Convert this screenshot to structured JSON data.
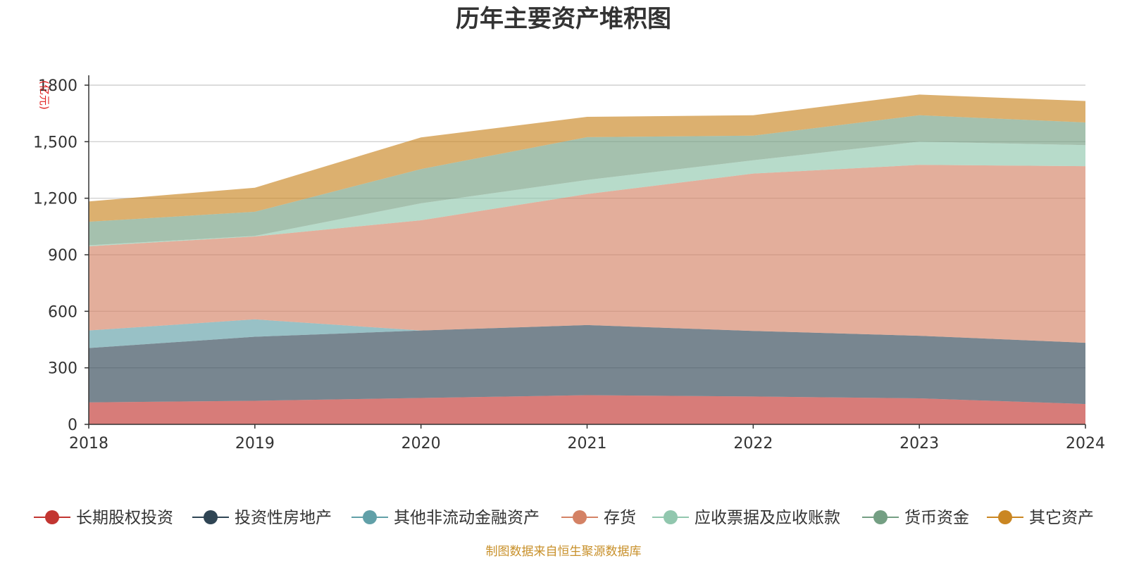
{
  "chart_data": {
    "type": "area",
    "stacked": true,
    "title": "历年主要资产堆积图",
    "ylabel": "(亿元)",
    "xlabel": "",
    "x": [
      "2018",
      "2019",
      "2020",
      "2021",
      "2022",
      "2023",
      "2024"
    ],
    "ylim": [
      0,
      1800
    ],
    "yticks": [
      0,
      300,
      600,
      900,
      1200,
      1500,
      1800
    ],
    "ytick_labels": [
      "0",
      "300",
      "600",
      "900",
      "1,200",
      "1,500",
      "1800"
    ],
    "grid": true,
    "legend_position": "bottom",
    "series": [
      {
        "name": "长期股权投资",
        "color": "#c23531",
        "values": [
          117,
          125,
          140,
          155,
          148,
          138,
          108
        ]
      },
      {
        "name": "投资性房地产",
        "color": "#2f4554",
        "values": [
          288,
          340,
          358,
          372,
          348,
          332,
          325
        ]
      },
      {
        "name": "其他非流动金融资产",
        "color": "#61a0a8",
        "values": [
          93,
          92,
          0,
          0,
          0,
          0,
          0
        ]
      },
      {
        "name": "存货",
        "color": "#d48265",
        "values": [
          447,
          440,
          585,
          695,
          835,
          907,
          937
        ]
      },
      {
        "name": "应收票据及应收账款",
        "color": "#91c7ae",
        "values": [
          5,
          3,
          90,
          75,
          70,
          123,
          112
        ]
      },
      {
        "name": "货币资金",
        "color": "#749f83",
        "values": [
          125,
          128,
          182,
          227,
          131,
          140,
          120
        ]
      },
      {
        "name": "其它资产",
        "color": "#ca8622",
        "values": [
          108,
          128,
          168,
          108,
          108,
          110,
          114
        ]
      }
    ]
  },
  "source": "制图数据来自恒生聚源数据库"
}
